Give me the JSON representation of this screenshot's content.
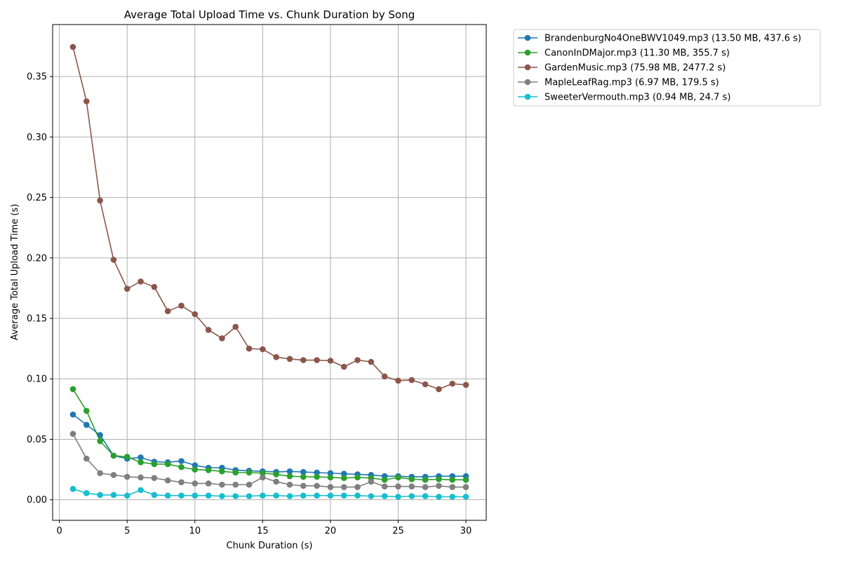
{
  "chart_data": {
    "type": "line",
    "title": "Average Total Upload Time vs. Chunk Duration by Song",
    "xlabel": "Chunk Duration (s)",
    "ylabel": "Average Total Upload Time (s)",
    "xlim": [
      -0.5,
      31.5
    ],
    "ylim": [
      -0.017,
      0.393
    ],
    "x_ticks": [
      0,
      5,
      10,
      15,
      20,
      25,
      30
    ],
    "y_ticks": [
      0.0,
      0.05,
      0.1,
      0.15,
      0.2,
      0.25,
      0.3,
      0.35
    ],
    "x_tick_labels": [
      "0",
      "5",
      "10",
      "15",
      "20",
      "25",
      "30"
    ],
    "y_tick_labels": [
      "0.00",
      "0.05",
      "0.10",
      "0.15",
      "0.20",
      "0.25",
      "0.30",
      "0.35"
    ],
    "grid": true,
    "legend_position": "outside-top-right",
    "x": [
      1,
      2,
      3,
      4,
      5,
      6,
      7,
      8,
      9,
      10,
      11,
      12,
      13,
      14,
      15,
      16,
      17,
      18,
      19,
      20,
      21,
      22,
      23,
      24,
      25,
      26,
      27,
      28,
      29,
      30
    ],
    "series": [
      {
        "name": "BrandenburgNo4OneBWV1049.mp3 (13.50 MB, 437.6 s)",
        "color": "#1f77b4",
        "values": [
          0.0705,
          0.062,
          0.0535,
          0.0365,
          0.034,
          0.035,
          0.0315,
          0.031,
          0.032,
          0.0285,
          0.0265,
          0.0265,
          0.0245,
          0.024,
          0.0235,
          0.023,
          0.0235,
          0.023,
          0.0225,
          0.022,
          0.0215,
          0.021,
          0.0205,
          0.0195,
          0.0195,
          0.019,
          0.019,
          0.0195,
          0.0195,
          0.0195
        ]
      },
      {
        "name": "CanonInDMajor.mp3 (11.30 MB, 355.7 s)",
        "color": "#2ca02c",
        "values": [
          0.0915,
          0.0735,
          0.0485,
          0.0365,
          0.0355,
          0.031,
          0.0295,
          0.0295,
          0.027,
          0.025,
          0.0245,
          0.0235,
          0.0225,
          0.0225,
          0.022,
          0.021,
          0.0195,
          0.019,
          0.019,
          0.0185,
          0.018,
          0.0185,
          0.018,
          0.0165,
          0.0185,
          0.017,
          0.0165,
          0.017,
          0.0165,
          0.0165
        ]
      },
      {
        "name": "GardenMusic.mp3 (75.98 MB, 2477.2 s)",
        "color": "#8c564b",
        "values": [
          0.3745,
          0.3295,
          0.2475,
          0.1985,
          0.1745,
          0.1805,
          0.176,
          0.156,
          0.1605,
          0.1535,
          0.1405,
          0.1335,
          0.143,
          0.125,
          0.1245,
          0.118,
          0.1165,
          0.1155,
          0.1155,
          0.115,
          0.11,
          0.1155,
          0.114,
          0.102,
          0.0985,
          0.099,
          0.0955,
          0.0915,
          0.096,
          0.095
        ]
      },
      {
        "name": "MapleLeafRag.mp3 (6.97 MB, 179.5 s)",
        "color": "#7f7f7f",
        "values": [
          0.0545,
          0.034,
          0.022,
          0.0205,
          0.019,
          0.0185,
          0.018,
          0.016,
          0.0145,
          0.0135,
          0.0135,
          0.0125,
          0.0125,
          0.0125,
          0.0185,
          0.015,
          0.0125,
          0.0115,
          0.0115,
          0.0105,
          0.0105,
          0.0105,
          0.015,
          0.011,
          0.011,
          0.011,
          0.0105,
          0.0115,
          0.0105,
          0.0105
        ]
      },
      {
        "name": "SweeterVermouth.mp3 (0.94 MB, 24.7 s)",
        "color": "#17becf",
        "values": [
          0.009,
          0.0055,
          0.004,
          0.004,
          0.0035,
          0.008,
          0.004,
          0.0035,
          0.0035,
          0.0035,
          0.0035,
          0.003,
          0.003,
          0.003,
          0.0035,
          0.0035,
          0.003,
          0.0035,
          0.0035,
          0.0035,
          0.0035,
          0.0035,
          0.003,
          0.003,
          0.0025,
          0.003,
          0.003,
          0.0025,
          0.0025,
          0.0025
        ]
      }
    ]
  }
}
